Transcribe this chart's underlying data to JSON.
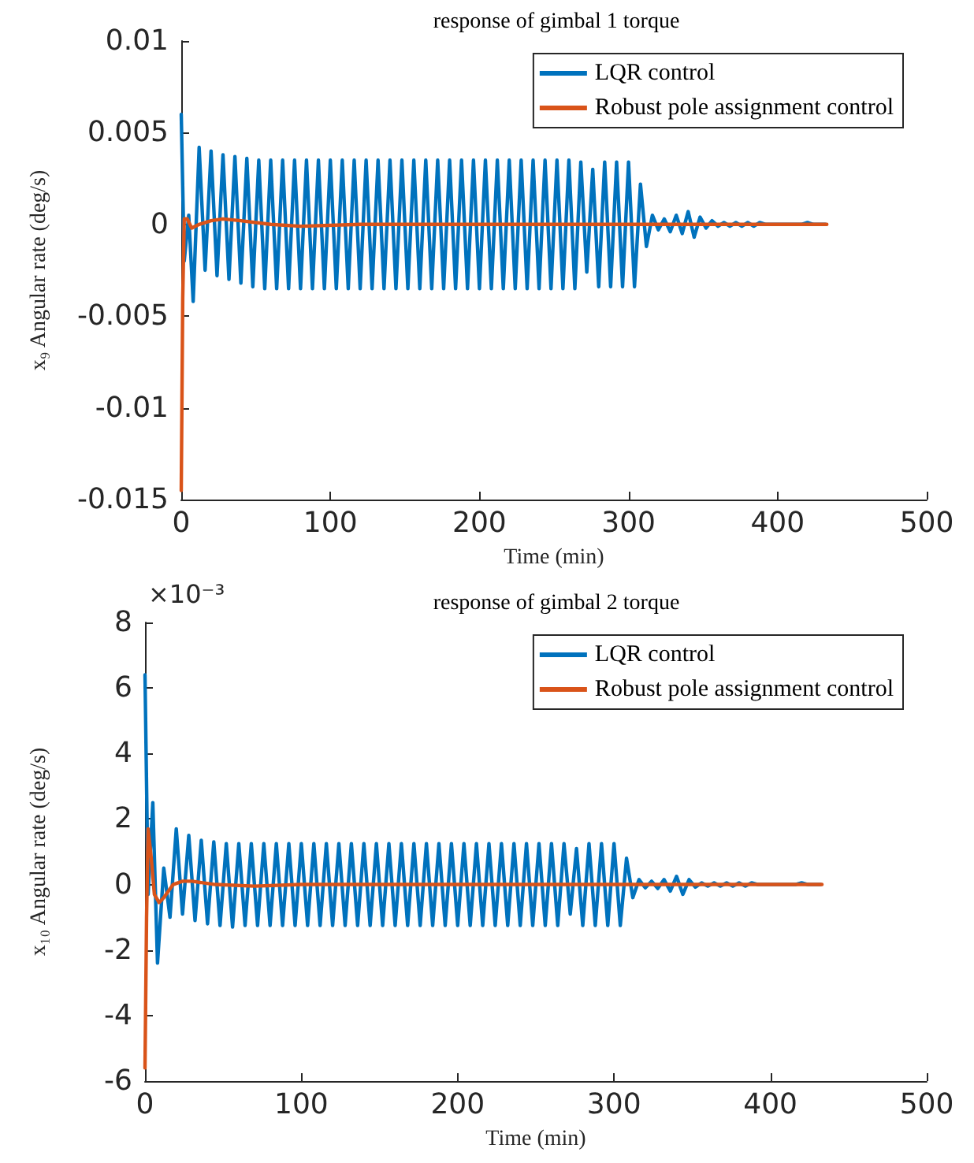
{
  "chart_data": [
    {
      "type": "line",
      "title": "response of gimbal 1 torque",
      "xlabel": "Time (min)",
      "ylabel": "x₉ Angular rate (deg/s)",
      "xlim": [
        0,
        500
      ],
      "xticks": [
        0,
        100,
        200,
        300,
        400,
        500
      ],
      "ylim": [
        -0.015,
        0.01
      ],
      "yticks": [
        -0.015,
        -0.01,
        -0.005,
        0,
        0.005,
        0.01
      ],
      "grid": false,
      "legend": "top right",
      "marker": "none",
      "line_style": "solid",
      "series": [
        {
          "name": "LQR control",
          "color": "#0072bd",
          "x": [
            0,
            2,
            5,
            8,
            12,
            16,
            20,
            24,
            28,
            32,
            36,
            40,
            44,
            48,
            52,
            56,
            60,
            64,
            68,
            72,
            76,
            80,
            84,
            88,
            92,
            96,
            100,
            104,
            108,
            112,
            116,
            120,
            124,
            128,
            132,
            136,
            140,
            144,
            148,
            152,
            156,
            160,
            164,
            168,
            172,
            176,
            180,
            184,
            188,
            192,
            196,
            200,
            204,
            208,
            212,
            216,
            220,
            224,
            228,
            232,
            236,
            240,
            244,
            248,
            252,
            256,
            260,
            264,
            268,
            272,
            276,
            280,
            284,
            288,
            292,
            296,
            300,
            304,
            308,
            312,
            316,
            320,
            324,
            328,
            332,
            336,
            340,
            344,
            348,
            352,
            356,
            360,
            364,
            368,
            372,
            376,
            380,
            384,
            388,
            392,
            396,
            400,
            404,
            408,
            412,
            416,
            420,
            424,
            428,
            432
          ],
          "values": [
            0.006,
            -0.002,
            0.0005,
            -0.0042,
            0.0042,
            -0.0025,
            0.004,
            -0.0028,
            0.0038,
            -0.003,
            0.0037,
            -0.0032,
            0.0036,
            -0.0034,
            0.0035,
            -0.0035,
            0.0035,
            -0.0035,
            0.0035,
            -0.0035,
            0.0035,
            -0.0035,
            0.0035,
            -0.0035,
            0.0035,
            -0.0035,
            0.0035,
            -0.0035,
            0.0035,
            -0.0035,
            0.0035,
            -0.0035,
            0.0035,
            -0.0035,
            0.0035,
            -0.0035,
            0.0035,
            -0.0035,
            0.0035,
            -0.0035,
            0.0035,
            -0.0035,
            0.0035,
            -0.0035,
            0.0035,
            -0.0035,
            0.0035,
            -0.0035,
            0.0035,
            -0.0035,
            0.0035,
            -0.0035,
            0.0035,
            -0.0035,
            0.0035,
            -0.0035,
            0.0035,
            -0.0035,
            0.0035,
            -0.0035,
            0.0035,
            -0.0035,
            0.0035,
            -0.0035,
            0.0035,
            -0.0035,
            0.0035,
            -0.0035,
            0.0034,
            -0.0026,
            0.003,
            -0.0034,
            0.0034,
            -0.0034,
            0.0034,
            -0.0034,
            0.0034,
            -0.0034,
            0.0022,
            -0.0012,
            0.0005,
            -0.0003,
            0.0003,
            -0.0004,
            0.0005,
            -0.0005,
            0.0007,
            -0.0007,
            0.0004,
            -0.0002,
            0.0002,
            -0.0001,
            0.0001,
            -0.0001,
            0.0001,
            -0.0001,
            0.0001,
            -0.0001,
            0.0001,
            0,
            0,
            0,
            0,
            0,
            0,
            0,
            0.0001,
            0,
            0,
            0
          ]
        },
        {
          "name": "Robust pole assignment control",
          "color": "#d95319",
          "x": [
            0,
            1,
            2,
            4,
            7,
            12,
            20,
            28,
            40,
            60,
            80,
            120,
            200,
            300,
            433
          ],
          "values": [
            -0.0145,
            -0.004,
            0.0003,
            0.0003,
            -0.0002,
            0,
            0.0002,
            0.0003,
            0.0002,
            0,
            -0.0001,
            0,
            0,
            0,
            0
          ]
        }
      ]
    },
    {
      "type": "line",
      "title": "response of gimbal 2 torque",
      "xlabel": "Time (min)",
      "ylabel": "x₁₀ Angular rate (deg/s)",
      "annotations": [
        "×10⁻³"
      ],
      "xlim": [
        0,
        500
      ],
      "xticks": [
        0,
        100,
        200,
        300,
        400,
        500
      ],
      "ylim": [
        -6,
        8
      ],
      "yticks": [
        -6,
        -4,
        -2,
        0,
        2,
        4,
        6,
        8
      ],
      "grid": false,
      "legend": "top right",
      "marker": "none",
      "line_style": "solid",
      "series": [
        {
          "name": "LQR control",
          "color": "#0072bd",
          "x": [
            0,
            2,
            5,
            8,
            12,
            16,
            20,
            24,
            28,
            32,
            36,
            40,
            44,
            48,
            52,
            56,
            60,
            64,
            68,
            72,
            76,
            80,
            84,
            88,
            92,
            96,
            100,
            104,
            108,
            112,
            116,
            120,
            124,
            128,
            132,
            136,
            140,
            144,
            148,
            152,
            156,
            160,
            164,
            168,
            172,
            176,
            180,
            184,
            188,
            192,
            196,
            200,
            204,
            208,
            212,
            216,
            220,
            224,
            228,
            232,
            236,
            240,
            244,
            248,
            252,
            256,
            260,
            264,
            268,
            272,
            276,
            280,
            284,
            288,
            292,
            296,
            300,
            304,
            308,
            312,
            316,
            320,
            324,
            328,
            332,
            336,
            340,
            344,
            348,
            352,
            356,
            360,
            364,
            368,
            372,
            376,
            380,
            384,
            388,
            392,
            396,
            400,
            404,
            408,
            412,
            416,
            420,
            424,
            428,
            432
          ],
          "values": [
            6.4,
            -0.3,
            2.5,
            -2.4,
            0.5,
            -1.0,
            1.7,
            -0.9,
            1.5,
            -1.1,
            1.35,
            -1.2,
            1.3,
            -1.25,
            1.25,
            -1.3,
            1.25,
            -1.25,
            1.25,
            -1.25,
            1.25,
            -1.25,
            1.25,
            -1.25,
            1.25,
            -1.25,
            1.25,
            -1.25,
            1.25,
            -1.25,
            1.25,
            -1.25,
            1.25,
            -1.25,
            1.25,
            -1.25,
            1.25,
            -1.25,
            1.25,
            -1.25,
            1.25,
            -1.25,
            1.25,
            -1.25,
            1.25,
            -1.25,
            1.25,
            -1.25,
            1.25,
            -1.25,
            1.25,
            -1.25,
            1.25,
            -1.25,
            1.25,
            -1.25,
            1.25,
            -1.25,
            1.25,
            -1.25,
            1.25,
            -1.25,
            1.25,
            -1.25,
            1.25,
            -1.25,
            1.25,
            -1.25,
            1.25,
            -0.9,
            1.1,
            -1.25,
            1.25,
            -1.25,
            1.25,
            -1.25,
            1.25,
            -1.25,
            0.8,
            -0.4,
            0.15,
            -0.1,
            0.1,
            -0.12,
            0.15,
            -0.2,
            0.25,
            -0.3,
            0.15,
            -0.08,
            0.05,
            -0.05,
            0.05,
            -0.05,
            0.05,
            -0.05,
            0.05,
            -0.05,
            0.05,
            0,
            0,
            0,
            0,
            0,
            0,
            0,
            0.05,
            0,
            0,
            0
          ]
        },
        {
          "name": "Robust pole assignment control",
          "color": "#d95319",
          "x": [
            0,
            1,
            2,
            4,
            6,
            9,
            12,
            18,
            24,
            30,
            45,
            70,
            100,
            433
          ],
          "values": [
            -5.6,
            -1,
            1.7,
            0.8,
            -0.3,
            -0.55,
            -0.4,
            0,
            0.1,
            0.1,
            0,
            -0.05,
            0,
            0
          ]
        }
      ]
    }
  ]
}
